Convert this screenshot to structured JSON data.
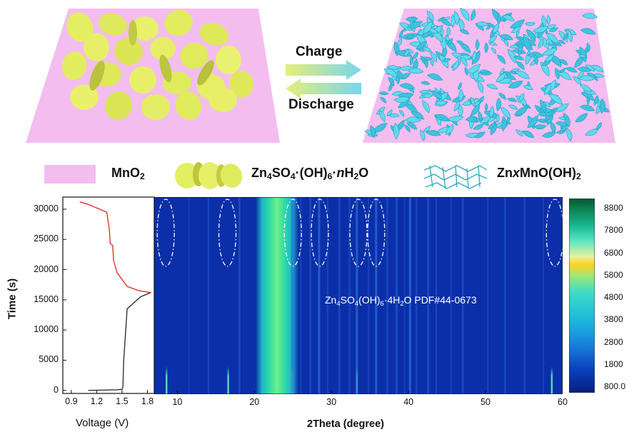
{
  "top": {
    "charge_label": "Charge",
    "discharge_label": "Discharge"
  },
  "legend": {
    "item1": {
      "text": "MnO",
      "sub": "2"
    },
    "item2": {
      "t1": "Zn",
      "s1": "4",
      "t2": "SO",
      "s2": "4",
      "t3": "·(OH)",
      "s3": "6",
      "t4": "·",
      "t5": "n",
      "t6": "H",
      "s4": "2",
      "t7": "O"
    },
    "item3": {
      "t1": "Zn",
      "t2": "x",
      "t3": "MnO(OH)",
      "s1": "2"
    }
  },
  "left_plot": {
    "ylabel": "Time (s)",
    "xlabel": "Voltage (V)",
    "yticks": [
      "0",
      "5000",
      "10000",
      "15000",
      "20000",
      "25000",
      "30000"
    ],
    "xticks": [
      "0.9",
      "1.2",
      "1.5",
      "1.8"
    ]
  },
  "heatmap": {
    "xlabel": "2Theta (degree)",
    "xticks": [
      "10",
      "20",
      "30",
      "40",
      "50",
      "60"
    ],
    "annotation": {
      "t1": "Zn",
      "s1": "4",
      "t2": "SO",
      "s2": "4",
      "t3": "(OH)",
      "s3": "6",
      "t4": "·4H",
      "s4": "2",
      "t5": "O PDF#44-0673"
    }
  },
  "colorbar": {
    "ticks": [
      "8800",
      "7800",
      "6800",
      "5800",
      "4800",
      "3800",
      "2800",
      "1800",
      "800.0"
    ]
  },
  "colors": {
    "substrate_pink": "#f4bdf0",
    "platelet_yellow": "#e6f06a",
    "nanosheet_cyan": "#4fd0e8",
    "heatmap_bg": "#0b2fa8",
    "charge_curve": "#d93a2b",
    "discharge_curve": "#333333"
  },
  "chart_data": {
    "type": "heatmap",
    "x_axis": {
      "label": "2Theta (degree)",
      "range": [
        7,
        60
      ]
    },
    "y_axis": {
      "label": "Time (s)",
      "range": [
        0,
        31500
      ]
    },
    "colorbar_range": [
      800,
      9300
    ],
    "bright_bands_2theta": [
      8.5,
      16.5,
      21,
      25,
      28.5,
      33.5,
      35.8,
      59
    ],
    "voltage_profile": {
      "xlabel": "Voltage (V)",
      "ylabel": "Time (s)",
      "discharge": {
        "voltage": [
          1.1,
          1.44,
          1.5,
          1.51,
          1.52,
          1.56,
          1.72,
          1.84
        ],
        "time": [
          0,
          100,
          200,
          500,
          5000,
          13500,
          15500,
          16200
        ]
      },
      "charge": {
        "voltage": [
          1.84,
          1.7,
          1.56,
          1.44,
          1.4,
          1.39,
          1.36,
          1.35,
          1.32,
          1.1,
          1.0
        ],
        "time": [
          16200,
          16500,
          17200,
          19500,
          21500,
          24000,
          24300,
          26500,
          29500,
          30800,
          31200
        ]
      }
    }
  }
}
